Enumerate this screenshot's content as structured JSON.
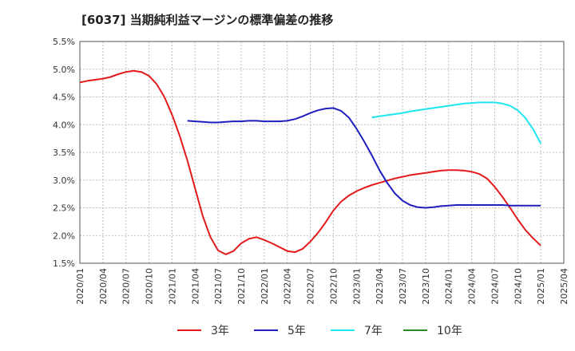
{
  "chart_data": {
    "type": "line",
    "title": "[6037]  当期純利益マージンの標準偏差の推移",
    "xlabel": "",
    "ylabel": "",
    "ylim": [
      1.5,
      5.5
    ],
    "xlim": [
      "2020-01",
      "2025-04"
    ],
    "grid": true,
    "legend_position": "bottom",
    "y_ticks": [
      "1.5%",
      "2.0%",
      "2.5%",
      "3.0%",
      "3.5%",
      "4.0%",
      "4.5%",
      "5.0%",
      "5.5%"
    ],
    "x_ticks": [
      "2020/01",
      "2020/04",
      "2020/07",
      "2020/10",
      "2021/01",
      "2021/04",
      "2021/07",
      "2021/10",
      "2022/01",
      "2022/04",
      "2022/07",
      "2022/10",
      "2023/01",
      "2023/04",
      "2023/07",
      "2023/10",
      "2024/01",
      "2024/04",
      "2024/07",
      "2024/10",
      "2025/01",
      "2025/04"
    ],
    "series": [
      {
        "name": "3年",
        "color": "#e31a1c",
        "points": [
          [
            "2020-01",
            4.76
          ],
          [
            "2020-02",
            4.79
          ],
          [
            "2020-03",
            4.81
          ],
          [
            "2020-04",
            4.83
          ],
          [
            "2020-05",
            4.86
          ],
          [
            "2020-06",
            4.91
          ],
          [
            "2020-07",
            4.95
          ],
          [
            "2020-08",
            4.97
          ],
          [
            "2020-09",
            4.95
          ],
          [
            "2020-10",
            4.88
          ],
          [
            "2020-11",
            4.73
          ],
          [
            "2020-12",
            4.5
          ],
          [
            "2021-01",
            4.18
          ],
          [
            "2021-02",
            3.8
          ],
          [
            "2021-03",
            3.35
          ],
          [
            "2021-04",
            2.85
          ],
          [
            "2021-05",
            2.35
          ],
          [
            "2021-06",
            1.97
          ],
          [
            "2021-07",
            1.73
          ],
          [
            "2021-08",
            1.66
          ],
          [
            "2021-09",
            1.72
          ],
          [
            "2021-10",
            1.86
          ],
          [
            "2021-11",
            1.94
          ],
          [
            "2021-12",
            1.97
          ],
          [
            "2022-01",
            1.92
          ],
          [
            "2022-02",
            1.86
          ],
          [
            "2022-03",
            1.79
          ],
          [
            "2022-04",
            1.72
          ],
          [
            "2022-05",
            1.7
          ],
          [
            "2022-06",
            1.76
          ],
          [
            "2022-07",
            1.89
          ],
          [
            "2022-08",
            2.05
          ],
          [
            "2022-09",
            2.24
          ],
          [
            "2022-10",
            2.45
          ],
          [
            "2022-11",
            2.61
          ],
          [
            "2022-12",
            2.72
          ],
          [
            "2023-01",
            2.8
          ],
          [
            "2023-02",
            2.86
          ],
          [
            "2023-03",
            2.91
          ],
          [
            "2023-04",
            2.95
          ],
          [
            "2023-05",
            2.99
          ],
          [
            "2023-06",
            3.03
          ],
          [
            "2023-07",
            3.06
          ],
          [
            "2023-08",
            3.09
          ],
          [
            "2023-09",
            3.11
          ],
          [
            "2023-10",
            3.13
          ],
          [
            "2023-11",
            3.15
          ],
          [
            "2023-12",
            3.17
          ],
          [
            "2024-01",
            3.18
          ],
          [
            "2024-02",
            3.18
          ],
          [
            "2024-03",
            3.17
          ],
          [
            "2024-04",
            3.15
          ],
          [
            "2024-05",
            3.11
          ],
          [
            "2024-06",
            3.03
          ],
          [
            "2024-07",
            2.88
          ],
          [
            "2024-08",
            2.7
          ],
          [
            "2024-09",
            2.5
          ],
          [
            "2024-10",
            2.29
          ],
          [
            "2024-11",
            2.1
          ],
          [
            "2024-12",
            1.95
          ],
          [
            "2025-01",
            1.82
          ]
        ]
      },
      {
        "name": "5年",
        "color": "#1f1fbf",
        "points": [
          [
            "2021-03",
            4.07
          ],
          [
            "2021-04",
            4.06
          ],
          [
            "2021-05",
            4.05
          ],
          [
            "2021-06",
            4.04
          ],
          [
            "2021-07",
            4.04
          ],
          [
            "2021-08",
            4.05
          ],
          [
            "2021-09",
            4.06
          ],
          [
            "2021-10",
            4.06
          ],
          [
            "2021-11",
            4.07
          ],
          [
            "2021-12",
            4.07
          ],
          [
            "2022-01",
            4.06
          ],
          [
            "2022-02",
            4.06
          ],
          [
            "2022-03",
            4.06
          ],
          [
            "2022-04",
            4.07
          ],
          [
            "2022-05",
            4.1
          ],
          [
            "2022-06",
            4.15
          ],
          [
            "2022-07",
            4.21
          ],
          [
            "2022-08",
            4.26
          ],
          [
            "2022-09",
            4.29
          ],
          [
            "2022-10",
            4.3
          ],
          [
            "2022-11",
            4.25
          ],
          [
            "2022-12",
            4.13
          ],
          [
            "2023-01",
            3.93
          ],
          [
            "2023-02",
            3.7
          ],
          [
            "2023-03",
            3.45
          ],
          [
            "2023-04",
            3.18
          ],
          [
            "2023-05",
            2.95
          ],
          [
            "2023-06",
            2.76
          ],
          [
            "2023-07",
            2.63
          ],
          [
            "2023-08",
            2.55
          ],
          [
            "2023-09",
            2.51
          ],
          [
            "2023-10",
            2.5
          ],
          [
            "2023-11",
            2.51
          ],
          [
            "2023-12",
            2.53
          ],
          [
            "2024-01",
            2.54
          ],
          [
            "2024-02",
            2.55
          ],
          [
            "2024-03",
            2.55
          ],
          [
            "2024-04",
            2.55
          ],
          [
            "2024-05",
            2.55
          ],
          [
            "2024-06",
            2.55
          ],
          [
            "2024-07",
            2.55
          ],
          [
            "2024-08",
            2.55
          ],
          [
            "2024-09",
            2.54
          ],
          [
            "2024-10",
            2.54
          ],
          [
            "2024-11",
            2.54
          ],
          [
            "2024-12",
            2.54
          ],
          [
            "2025-01",
            2.54
          ]
        ]
      },
      {
        "name": "7年",
        "color": "#1ee5f0",
        "points": [
          [
            "2023-03",
            4.13
          ],
          [
            "2023-04",
            4.15
          ],
          [
            "2023-05",
            4.17
          ],
          [
            "2023-06",
            4.19
          ],
          [
            "2023-07",
            4.21
          ],
          [
            "2023-08",
            4.24
          ],
          [
            "2023-09",
            4.26
          ],
          [
            "2023-10",
            4.28
          ],
          [
            "2023-11",
            4.3
          ],
          [
            "2023-12",
            4.32
          ],
          [
            "2024-01",
            4.34
          ],
          [
            "2024-02",
            4.36
          ],
          [
            "2024-03",
            4.38
          ],
          [
            "2024-04",
            4.39
          ],
          [
            "2024-05",
            4.4
          ],
          [
            "2024-06",
            4.4
          ],
          [
            "2024-07",
            4.4
          ],
          [
            "2024-08",
            4.38
          ],
          [
            "2024-09",
            4.34
          ],
          [
            "2024-10",
            4.26
          ],
          [
            "2024-11",
            4.12
          ],
          [
            "2024-12",
            3.92
          ],
          [
            "2025-01",
            3.66
          ]
        ]
      },
      {
        "name": "10年",
        "color": "#2a8a2a",
        "points": []
      }
    ]
  }
}
